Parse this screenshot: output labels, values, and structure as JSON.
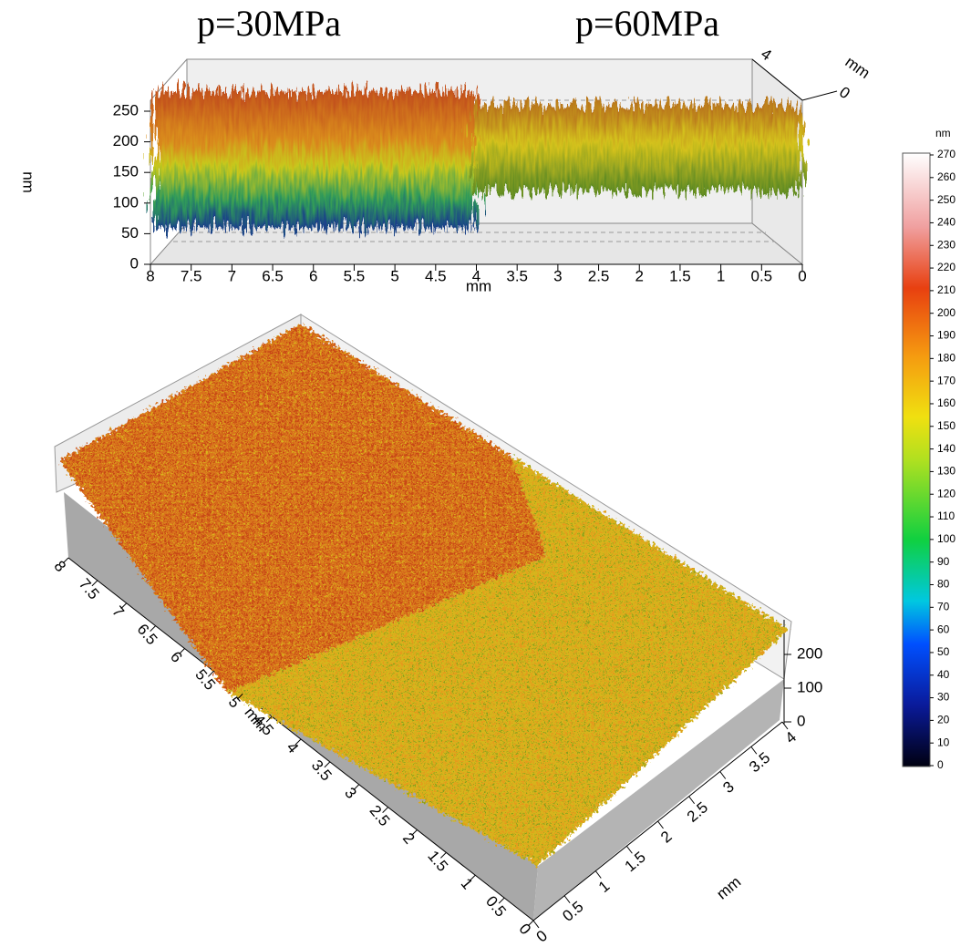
{
  "titles": [
    "p=30MPa",
    "p=60MPa"
  ],
  "top_plot": {
    "z_label": "nm",
    "z_ticks": [
      0,
      50,
      100,
      150,
      200,
      250
    ],
    "x_ticks": [
      8,
      7.5,
      7,
      6.5,
      6,
      5.5,
      5,
      4.5,
      4,
      3.5,
      3,
      2.5,
      2,
      1.5,
      1,
      0.5,
      0
    ],
    "x_label": "mm",
    "y_ticks": [
      0,
      4
    ],
    "y_label": "mm"
  },
  "bottom_plot": {
    "x_ticks": [
      8,
      7.5,
      7,
      6.5,
      6,
      5.5,
      5,
      4.5,
      4,
      3.5,
      3,
      2.5,
      2,
      1.5,
      1,
      0.5,
      0
    ],
    "x_label": "mm",
    "y_ticks": [
      0,
      0.5,
      1,
      1.5,
      2,
      2.5,
      3,
      3.5,
      4
    ],
    "y_label": "mm",
    "z_ticks": [
      0,
      100,
      200
    ]
  },
  "colorbar": {
    "unit": "nm",
    "ticks": [
      0,
      10,
      20,
      30,
      40,
      50,
      60,
      70,
      80,
      90,
      100,
      110,
      120,
      130,
      140,
      150,
      160,
      170,
      180,
      190,
      200,
      210,
      220,
      230,
      240,
      250,
      260,
      270
    ]
  }
}
